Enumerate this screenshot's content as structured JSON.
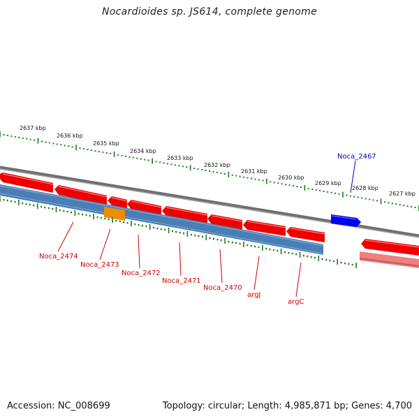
{
  "title": "Nocardioides sp. JS614, complete genome",
  "footer": {
    "accession": "Accession: NC_008699",
    "summary": "Topology: circular; Length: 4,985,871 bp; Genes: 4,700"
  },
  "ruler": {
    "labels": [
      "2637 kbp",
      "2636 kbp",
      "2635 kbp",
      "2634 kbp",
      "2633 kbp",
      "2632 kbp",
      "2631 kbp",
      "2630 kbp",
      "2629 kbp",
      "2628 kbp",
      "2627 kbp"
    ]
  },
  "gene_labels": [
    "Noca_2474",
    "Noca_2473",
    "Noca_2472",
    "Noca_2471",
    "Noca_2470",
    "argJ",
    "argC",
    "Noca_2467"
  ],
  "colors": {
    "forward_gene": "#0000ee",
    "reverse_gene": "#ee0000",
    "reverse_gene_light": "#f08080",
    "cds_track": "#4a7fb5",
    "cds_highlight": "#f08c00",
    "backbone": "#888888",
    "tick": "#1a7a1a",
    "reverse_label": "#cc0000",
    "forward_label": "#0000cc"
  }
}
